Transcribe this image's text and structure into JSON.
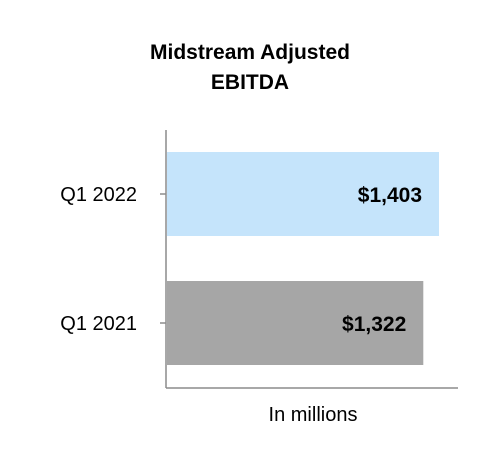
{
  "chart_data": {
    "type": "bar",
    "orientation": "horizontal",
    "title_lines": [
      "Midstream Adjusted",
      "EBITDA"
    ],
    "categories": [
      "Q1 2022",
      "Q1 2021"
    ],
    "values": [
      1403,
      1322
    ],
    "data_labels": [
      "$1,403",
      "$1,322"
    ],
    "bar_colors": [
      "#c5e4fb",
      "#a6a6a6"
    ],
    "xlabel": "In millions",
    "ylabel": "",
    "xlim": [
      0,
      1480
    ],
    "grid": false,
    "legend": "none"
  }
}
